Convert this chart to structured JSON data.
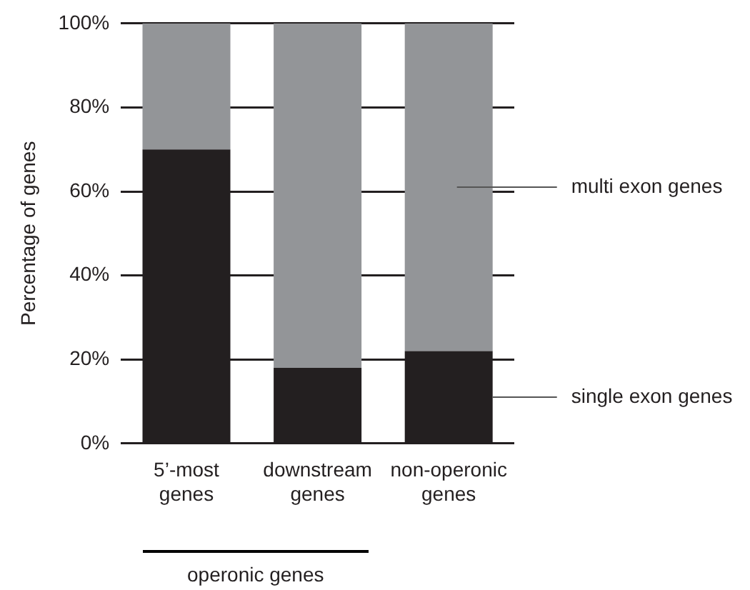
{
  "chart_data": {
    "type": "bar",
    "stacked": true,
    "ylabel": "Percentage of genes",
    "categories": [
      "5’-most genes",
      "downstream genes",
      "non-operonic genes"
    ],
    "series": [
      {
        "name": "single exon genes",
        "color": "#231f20",
        "values": [
          70,
          18,
          22
        ]
      },
      {
        "name": "multi exon genes",
        "color": "#939598",
        "values": [
          30,
          82,
          78
        ]
      }
    ],
    "ylim": [
      0,
      100
    ],
    "yticks": [
      {
        "value": 0,
        "label": "0%"
      },
      {
        "value": 20,
        "label": "20%"
      },
      {
        "value": 40,
        "label": "40%"
      },
      {
        "value": 60,
        "label": "60%"
      },
      {
        "value": 80,
        "label": "80%"
      },
      {
        "value": 100,
        "label": "100%"
      }
    ],
    "grid": "y",
    "legend": false,
    "annotations": [
      "operonic genes"
    ]
  }
}
